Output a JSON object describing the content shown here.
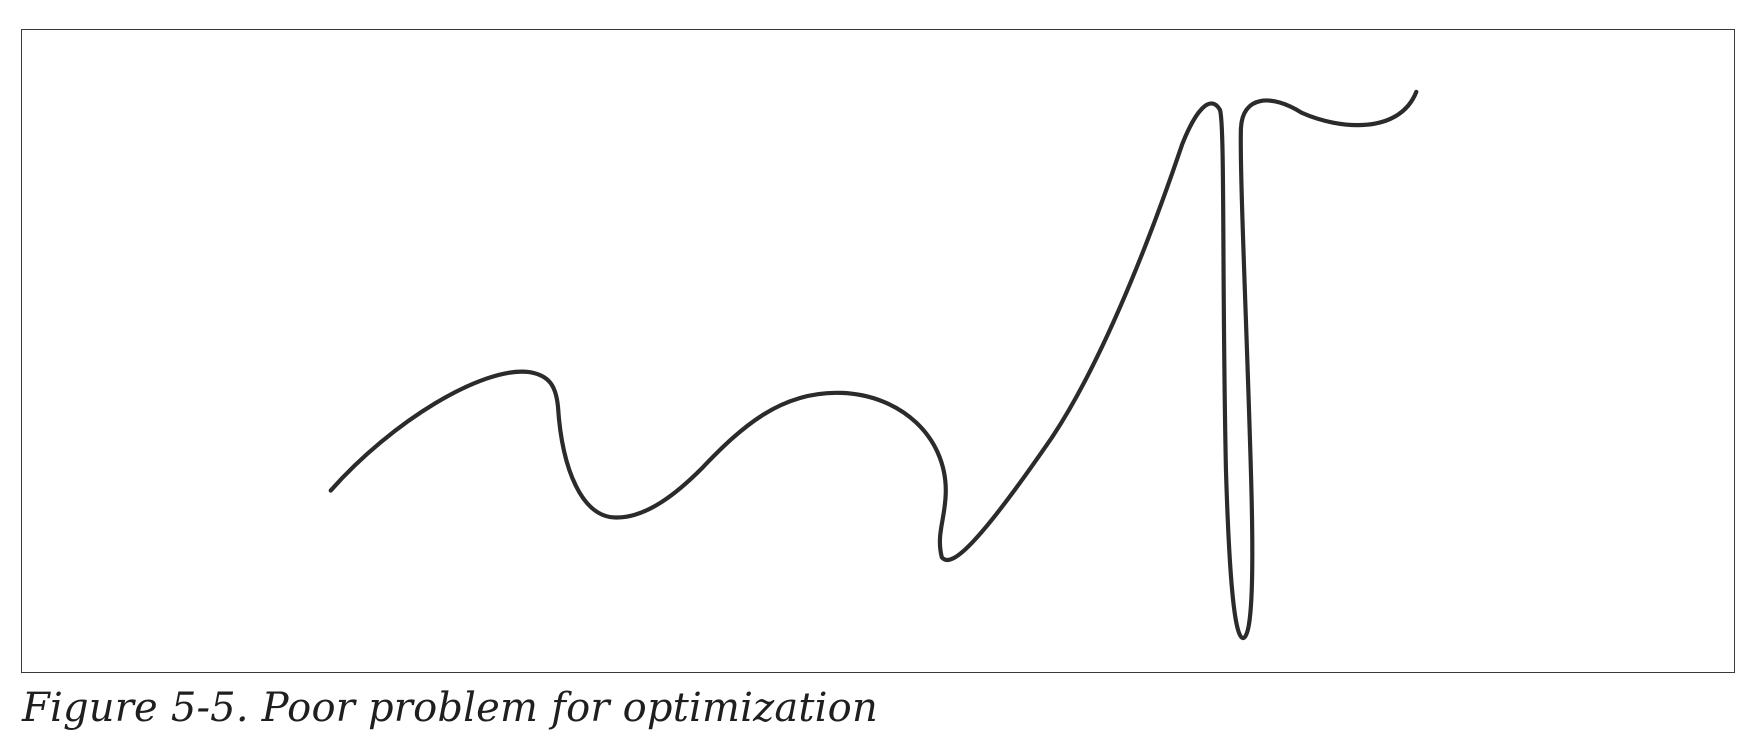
{
  "figure": {
    "caption": "Figure 5-5. Poor problem for optimization",
    "border_color": "#3a3a3a",
    "curve_color": "#2b2b2b"
  }
}
